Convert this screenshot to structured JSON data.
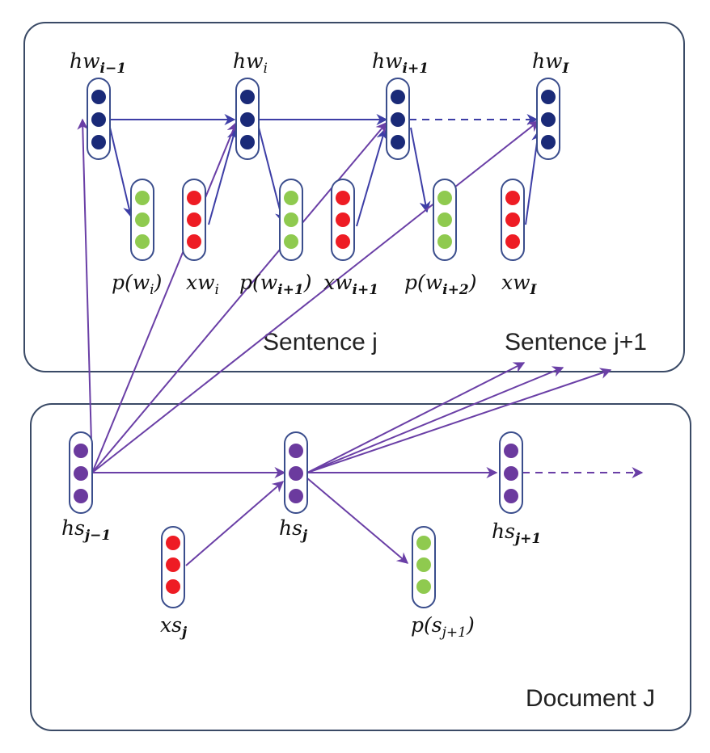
{
  "panels": {
    "sentence": "Sentence j",
    "next_sentence": "Sentence j+1",
    "document": "Document J"
  },
  "word_level": {
    "hidden": [
      {
        "base": "hw",
        "sub": "i−1"
      },
      {
        "base": "hw",
        "sub": "i"
      },
      {
        "base": "hw",
        "sub": "i+1"
      },
      {
        "base": "hw",
        "sub": "I"
      }
    ],
    "outputs": [
      {
        "pre": "p(w",
        "sub": "i",
        "post": ")"
      },
      {
        "pre": "p(w",
        "sub": "i+1",
        "post": ")"
      },
      {
        "pre": "p(w",
        "sub": "i+2",
        "post": ")"
      }
    ],
    "inputs": [
      {
        "base": "xw",
        "sub": "i"
      },
      {
        "base": "xw",
        "sub": "i+1"
      },
      {
        "base": "xw",
        "sub": "I"
      }
    ]
  },
  "sentence_level": {
    "hidden": [
      {
        "base": "hs",
        "sub": "j−1"
      },
      {
        "base": "hs",
        "sub": "j"
      },
      {
        "base": "hs",
        "sub": "j+1"
      }
    ],
    "input": {
      "base": "xs",
      "sub": "j"
    },
    "output": {
      "pre": "p(s",
      "sub": "j+1",
      "post": ")"
    }
  },
  "colors": {
    "word_hidden": "#1a2a78",
    "sentence_hidden": "#6b3a9e",
    "output": "#8fca4f",
    "input": "#ee1c24",
    "word_arrow": "#3d3ea6",
    "sentence_arrow": "#6a3fa6"
  }
}
